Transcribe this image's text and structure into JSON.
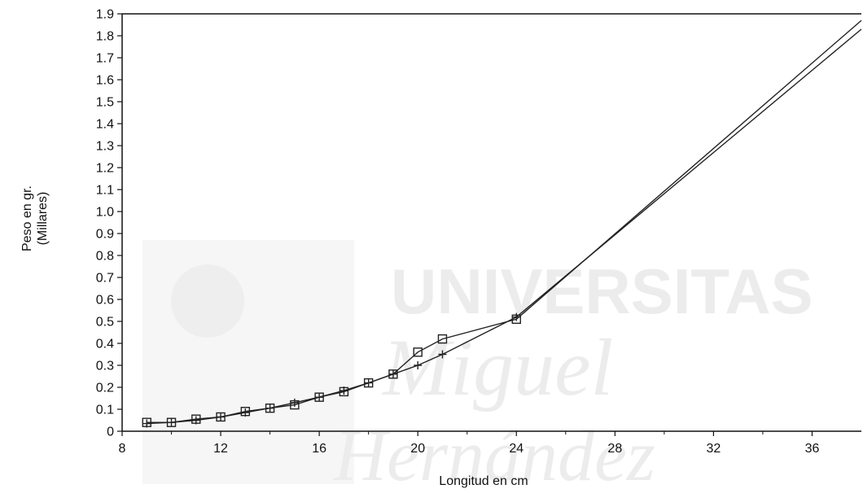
{
  "watermark": {
    "line1": "UNIVERSITAS",
    "line2": "Miguel",
    "line3": "Hernández"
  },
  "chart_data": {
    "type": "line",
    "title": "",
    "xlabel": "Longitud en cm",
    "ylabel": "Peso en gr.",
    "ylabel2": "(Millares)",
    "xlim": [
      8,
      38
    ],
    "ylim": [
      0,
      1.9
    ],
    "xticks": [
      8,
      12,
      16,
      20,
      24,
      28,
      32,
      36
    ],
    "yticks": [
      0,
      0.1,
      0.2,
      0.3,
      0.4,
      0.5,
      0.6,
      0.7,
      0.8,
      0.9,
      1.0,
      1.1,
      1.2,
      1.3,
      1.4,
      1.5,
      1.6,
      1.7,
      1.8,
      1.9
    ],
    "ytick_labels": [
      "0",
      "0.1",
      "0.2",
      "0.3",
      "0.4",
      "0.5",
      "0.6",
      "0.7",
      "0.8",
      "0.9",
      "1.0",
      "1.1",
      "1.2",
      "1.3",
      "1.4",
      "1.5",
      "1.6",
      "1.7",
      "1.8",
      "1.9"
    ],
    "grid": false,
    "legend": "none",
    "series": [
      {
        "marker": "square",
        "color": "#222222",
        "x": [
          9,
          10,
          11,
          12,
          13,
          14,
          15,
          16,
          17,
          18,
          19,
          20,
          21,
          24,
          38
        ],
        "y": [
          0.04,
          0.04,
          0.055,
          0.065,
          0.09,
          0.105,
          0.12,
          0.155,
          0.18,
          0.22,
          0.26,
          0.36,
          0.42,
          0.51,
          1.87
        ]
      },
      {
        "marker": "plus",
        "color": "#222222",
        "x": [
          9,
          10,
          11,
          12,
          13,
          14,
          15,
          16,
          17,
          18,
          19,
          20,
          21,
          24,
          38
        ],
        "y": [
          0.035,
          0.04,
          0.05,
          0.065,
          0.085,
          0.105,
          0.13,
          0.155,
          0.185,
          0.22,
          0.26,
          0.3,
          0.35,
          0.52,
          1.83
        ]
      }
    ]
  }
}
